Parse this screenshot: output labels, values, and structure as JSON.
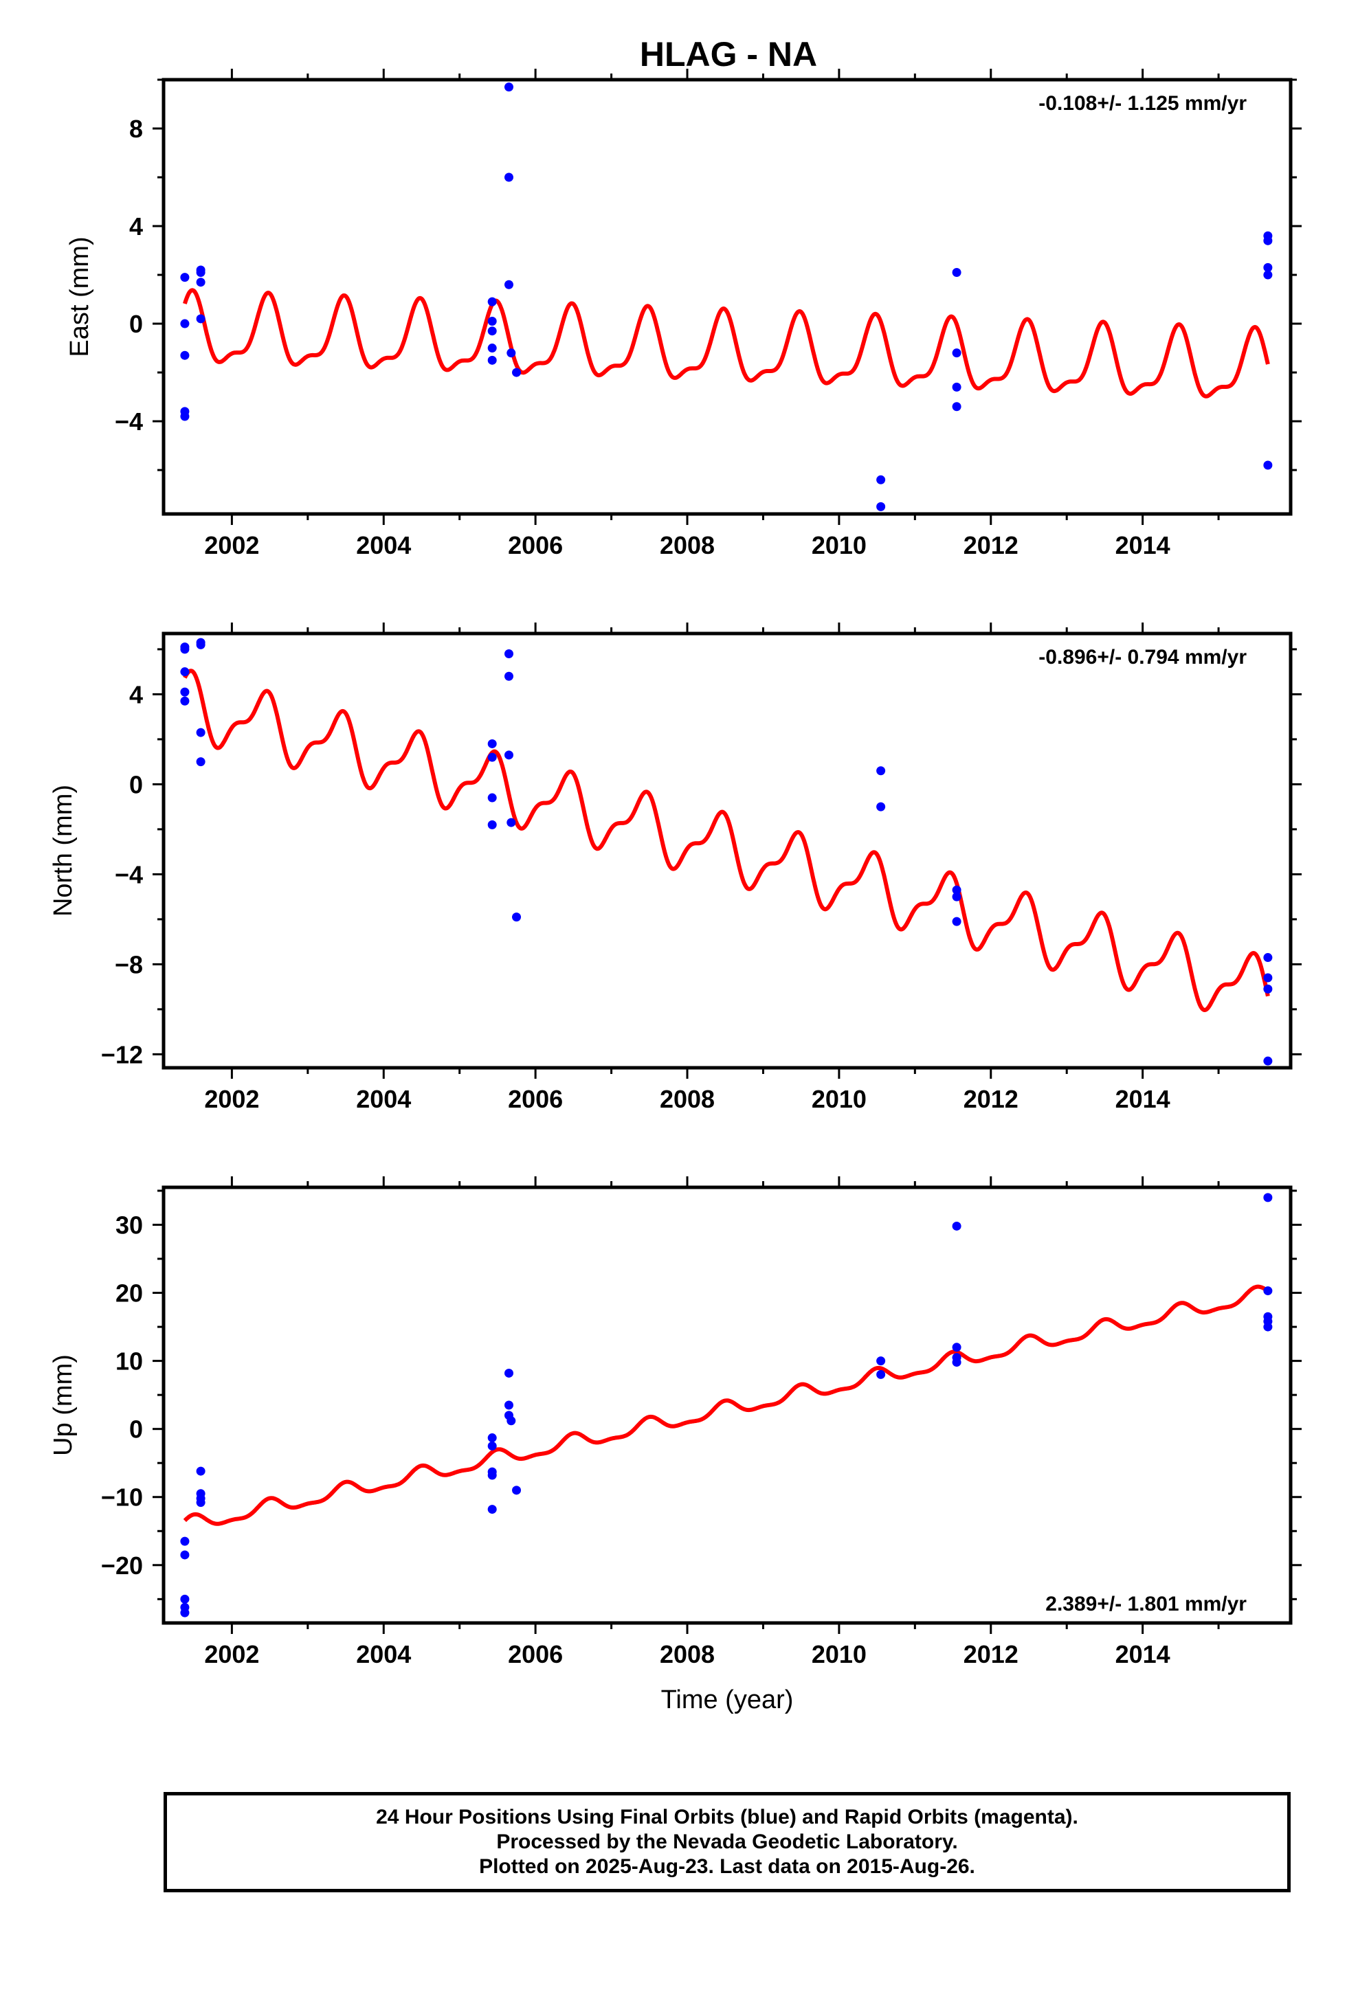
{
  "title": "HLAG - NA",
  "colors": {
    "data": "#0000ff",
    "model": "#ff0000",
    "frame": "#000000"
  },
  "footer": {
    "line1": "24 Hour Positions Using Final Orbits (blue) and Rapid Orbits (magenta).",
    "line2": "Processed by the Nevada Geodetic Laboratory.",
    "line3": "Plotted on 2025-Aug-23. Last data on 2015-Aug-26."
  },
  "chart_data": [
    {
      "type": "scatter",
      "component": "east",
      "ylabel": "East (mm)",
      "xlabel": "",
      "rate_label": "-0.108+/- 1.125 mm/yr",
      "rate_position": "top-right",
      "xlim": [
        2001.1,
        2015.95
      ],
      "ylim": [
        -7.8,
        10.0
      ],
      "xticks": [
        2002,
        2004,
        2006,
        2008,
        2010,
        2012,
        2014
      ],
      "yticks": [
        -4,
        0,
        4,
        8
      ],
      "model": {
        "offset": -0.3,
        "t0": 2001.4,
        "trend": -0.108,
        "amp1": 1.3,
        "amp2": 0.5,
        "phase1": 1.2,
        "phase2": 0.4,
        "y0": -0.1
      },
      "points": [
        {
          "x": 2001.38,
          "y": 1.9
        },
        {
          "x": 2001.38,
          "y": 0.0
        },
        {
          "x": 2001.38,
          "y": -1.3
        },
        {
          "x": 2001.38,
          "y": -3.6
        },
        {
          "x": 2001.38,
          "y": -3.8
        },
        {
          "x": 2001.59,
          "y": 2.2
        },
        {
          "x": 2001.59,
          "y": 2.1
        },
        {
          "x": 2001.59,
          "y": 1.7
        },
        {
          "x": 2001.59,
          "y": 0.2
        },
        {
          "x": 2005.43,
          "y": 0.9
        },
        {
          "x": 2005.43,
          "y": 0.1
        },
        {
          "x": 2005.43,
          "y": -0.3
        },
        {
          "x": 2005.43,
          "y": -1.0
        },
        {
          "x": 2005.43,
          "y": -1.5
        },
        {
          "x": 2005.65,
          "y": 9.7
        },
        {
          "x": 2005.65,
          "y": 6.0
        },
        {
          "x": 2005.65,
          "y": 1.6
        },
        {
          "x": 2005.68,
          "y": -1.2
        },
        {
          "x": 2005.75,
          "y": -2.0
        },
        {
          "x": 2010.55,
          "y": -6.4
        },
        {
          "x": 2010.55,
          "y": -7.5
        },
        {
          "x": 2011.55,
          "y": 2.1
        },
        {
          "x": 2011.55,
          "y": -1.2
        },
        {
          "x": 2011.55,
          "y": -2.6
        },
        {
          "x": 2011.55,
          "y": -3.4
        },
        {
          "x": 2015.65,
          "y": 3.6
        },
        {
          "x": 2015.65,
          "y": 3.4
        },
        {
          "x": 2015.65,
          "y": 2.3
        },
        {
          "x": 2015.65,
          "y": 2.0
        },
        {
          "x": 2015.65,
          "y": -5.8
        }
      ]
    },
    {
      "type": "scatter",
      "component": "north",
      "ylabel": "North (mm)",
      "xlabel": "",
      "rate_label": "-0.896+/- 0.794 mm/yr",
      "rate_position": "top-right",
      "xlim": [
        2001.1,
        2015.95
      ],
      "ylim": [
        -12.6,
        6.7
      ],
      "xticks": [
        2002,
        2004,
        2006,
        2008,
        2010,
        2012,
        2014
      ],
      "yticks": [
        -12,
        -8,
        -4,
        0,
        4
      ],
      "model": {
        "offset": 0.0,
        "t0": 2001.4,
        "trend": -0.896,
        "amp1": 1.25,
        "amp2": 0.55,
        "phase1": 1.6,
        "phase2": 0.2,
        "y0": 3.5
      },
      "points": [
        {
          "x": 2001.38,
          "y": 6.1
        },
        {
          "x": 2001.38,
          "y": 6.0
        },
        {
          "x": 2001.38,
          "y": 5.0
        },
        {
          "x": 2001.38,
          "y": 4.1
        },
        {
          "x": 2001.38,
          "y": 3.7
        },
        {
          "x": 2001.59,
          "y": 6.3
        },
        {
          "x": 2001.59,
          "y": 6.2
        },
        {
          "x": 2001.59,
          "y": 2.3
        },
        {
          "x": 2001.59,
          "y": 1.0
        },
        {
          "x": 2005.43,
          "y": 1.8
        },
        {
          "x": 2005.43,
          "y": 1.2
        },
        {
          "x": 2005.43,
          "y": -0.6
        },
        {
          "x": 2005.43,
          "y": -1.8
        },
        {
          "x": 2005.65,
          "y": 5.8
        },
        {
          "x": 2005.65,
          "y": 4.8
        },
        {
          "x": 2005.65,
          "y": 1.3
        },
        {
          "x": 2005.68,
          "y": -1.7
        },
        {
          "x": 2005.75,
          "y": -5.9
        },
        {
          "x": 2010.55,
          "y": 0.6
        },
        {
          "x": 2010.55,
          "y": -1.0
        },
        {
          "x": 2011.55,
          "y": -4.7
        },
        {
          "x": 2011.55,
          "y": -5.0
        },
        {
          "x": 2011.55,
          "y": -6.1
        },
        {
          "x": 2015.65,
          "y": -7.7
        },
        {
          "x": 2015.65,
          "y": -8.6
        },
        {
          "x": 2015.65,
          "y": -9.1
        },
        {
          "x": 2015.65,
          "y": -12.3
        }
      ]
    },
    {
      "type": "scatter",
      "component": "up",
      "ylabel": "Up (mm)",
      "xlabel": "Time (year)",
      "rate_label": "2.389+/- 1.801 mm/yr",
      "rate_position": "bottom-right",
      "xlim": [
        2001.1,
        2015.95
      ],
      "ylim": [
        -28.5,
        35.5
      ],
      "xticks": [
        2002,
        2004,
        2006,
        2008,
        2010,
        2012,
        2014
      ],
      "yticks": [
        -20,
        -10,
        0,
        10,
        20,
        30
      ],
      "model": {
        "offset": 0.0,
        "t0": 2001.4,
        "trend": 2.389,
        "amp1": 1.0,
        "amp2": 0.4,
        "phase1": 1.0,
        "phase2": 0.3,
        "y0": -14.2
      },
      "points": [
        {
          "x": 2001.38,
          "y": -16.5
        },
        {
          "x": 2001.38,
          "y": -18.5
        },
        {
          "x": 2001.38,
          "y": -25.0
        },
        {
          "x": 2001.38,
          "y": -26.2
        },
        {
          "x": 2001.38,
          "y": -27.0
        },
        {
          "x": 2001.59,
          "y": -6.2
        },
        {
          "x": 2001.59,
          "y": -9.5
        },
        {
          "x": 2001.59,
          "y": -10.2
        },
        {
          "x": 2001.59,
          "y": -10.8
        },
        {
          "x": 2005.43,
          "y": -1.3
        },
        {
          "x": 2005.43,
          "y": -2.5
        },
        {
          "x": 2005.43,
          "y": -6.3
        },
        {
          "x": 2005.43,
          "y": -6.8
        },
        {
          "x": 2005.43,
          "y": -11.8
        },
        {
          "x": 2005.65,
          "y": 8.2
        },
        {
          "x": 2005.65,
          "y": 3.5
        },
        {
          "x": 2005.65,
          "y": 2.0
        },
        {
          "x": 2005.68,
          "y": 1.2
        },
        {
          "x": 2005.75,
          "y": -9.0
        },
        {
          "x": 2010.55,
          "y": 10.0
        },
        {
          "x": 2010.55,
          "y": 8.0
        },
        {
          "x": 2011.55,
          "y": 29.8
        },
        {
          "x": 2011.55,
          "y": 12.0
        },
        {
          "x": 2011.55,
          "y": 10.5
        },
        {
          "x": 2011.55,
          "y": 9.8
        },
        {
          "x": 2015.65,
          "y": 34.0
        },
        {
          "x": 2015.65,
          "y": 20.3
        },
        {
          "x": 2015.65,
          "y": 16.5
        },
        {
          "x": 2015.65,
          "y": 15.8
        },
        {
          "x": 2015.65,
          "y": 15.0
        }
      ]
    }
  ]
}
